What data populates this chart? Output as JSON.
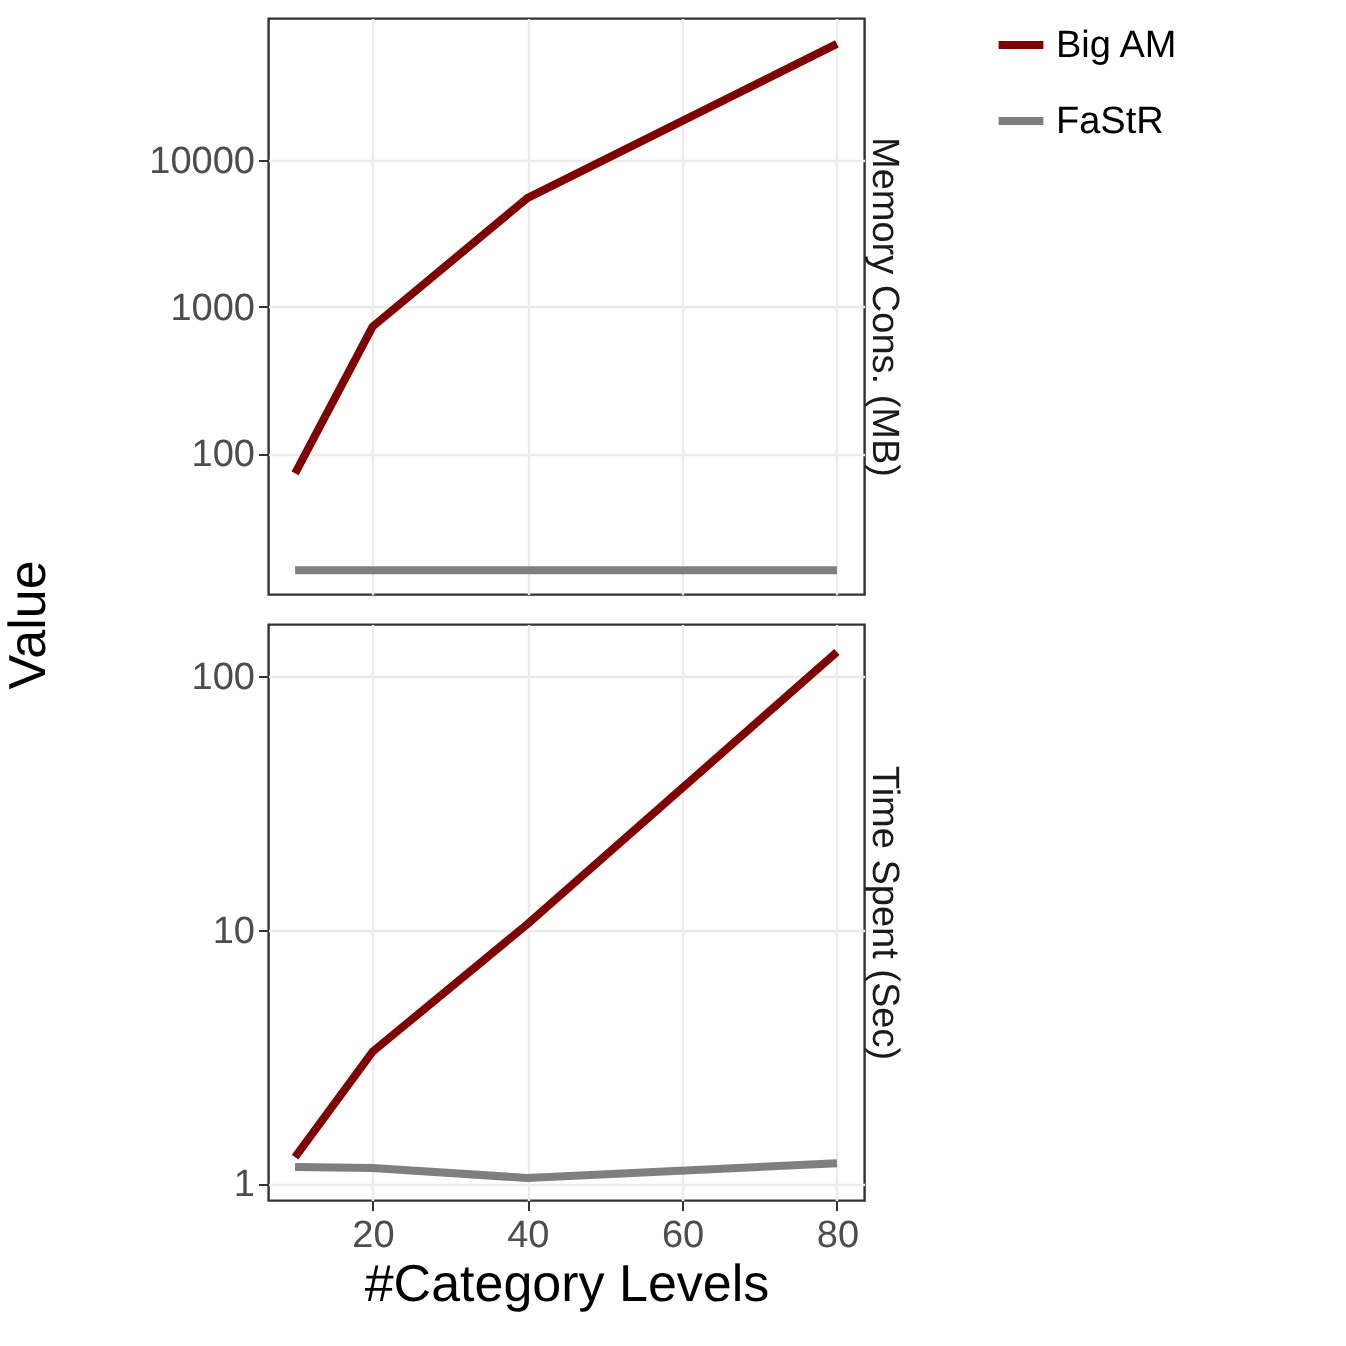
{
  "chart_data": [
    {
      "type": "line",
      "title": "Memory Cons. (MB)",
      "ylabel": "Value",
      "x": [
        10,
        20,
        40,
        80
      ],
      "series": [
        {
          "name": "Big AM",
          "color": "#800000",
          "values": [
            73,
            730,
            5500,
            62000
          ]
        },
        {
          "name": "FaStR",
          "color": "#7f7f7f",
          "values": [
            16,
            16,
            16,
            16
          ]
        }
      ],
      "log": "y",
      "xlim": [
        6.5,
        83.5
      ],
      "xticks": [
        20,
        40,
        60,
        80
      ],
      "ylim": [
        11,
        93000
      ],
      "yticks": [
        100,
        1000,
        10000
      ],
      "grid": true,
      "legend": "right",
      "tick_labels": "y"
    },
    {
      "type": "line",
      "title": "Time Spent (Sec)",
      "xlabel": "#Category Levels",
      "x": [
        10,
        20,
        40,
        80
      ],
      "series": [
        {
          "name": "Big AM",
          "color": "#800000",
          "values": [
            1.27,
            3.3,
            10.5,
            124
          ]
        },
        {
          "name": "FaStR",
          "color": "#7f7f7f",
          "values": [
            1.16,
            1.15,
            1.05,
            1.2
          ]
        }
      ],
      "log": "y",
      "xlim": [
        6.5,
        83.5
      ],
      "xticks": [
        20,
        40,
        60,
        80
      ],
      "ylim": [
        0.86,
        160
      ],
      "yticks": [
        1,
        10,
        100
      ],
      "grid": true,
      "legend": "right"
    }
  ]
}
